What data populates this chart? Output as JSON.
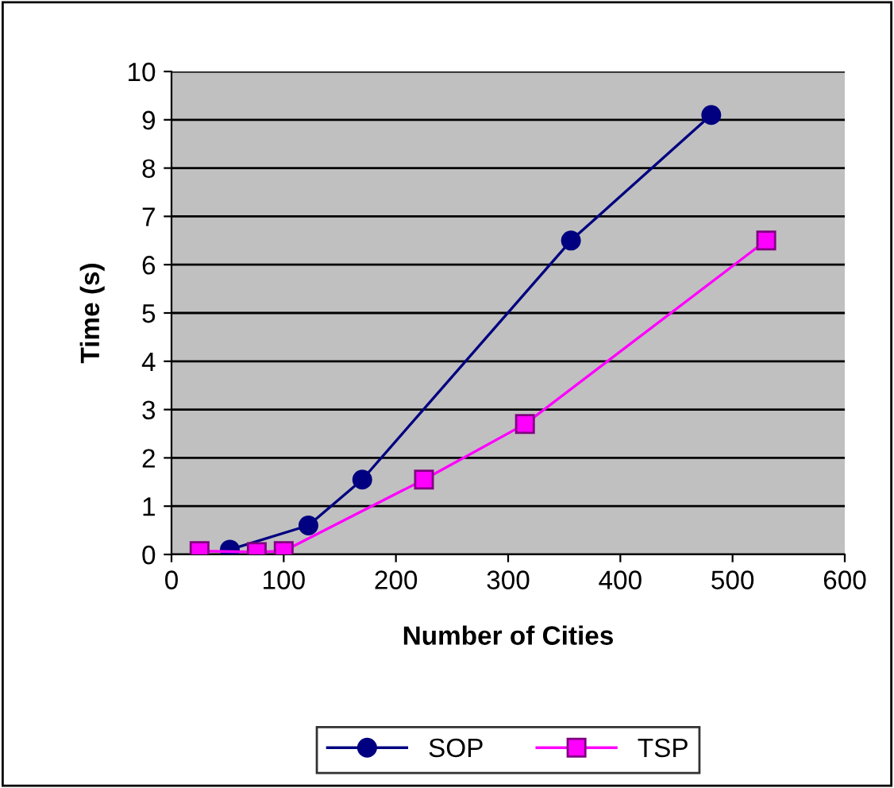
{
  "chart_data": {
    "type": "line",
    "xlabel": "Number of Cities",
    "ylabel": "Time (s)",
    "series": [
      {
        "name": "SOP",
        "color": "#000080",
        "marker": "circle",
        "x": [
          52,
          122,
          170,
          356,
          481
        ],
        "values": [
          0.1,
          0.6,
          1.55,
          6.5,
          9.1
        ]
      },
      {
        "name": "TSP",
        "color": "#ff00ff",
        "marker": "square",
        "x": [
          25,
          76,
          100,
          225,
          315,
          530
        ],
        "values": [
          0.07,
          0.05,
          0.07,
          1.55,
          2.7,
          6.5
        ]
      }
    ],
    "xlim": [
      0,
      600
    ],
    "xticks": [
      0,
      100,
      200,
      300,
      400,
      500,
      600
    ],
    "ylim": [
      0,
      10
    ],
    "yticks": [
      0,
      1,
      2,
      3,
      4,
      5,
      6,
      7,
      8,
      9,
      10
    ],
    "grid": "y",
    "legend": "bottom"
  }
}
